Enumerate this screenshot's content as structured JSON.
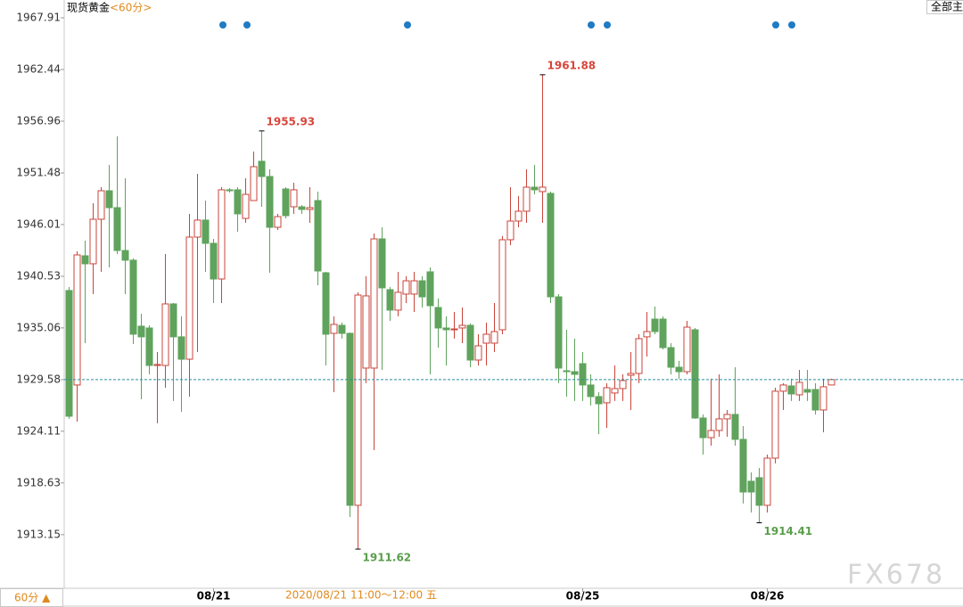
{
  "chart_data": {
    "type": "candlestick",
    "title": "现货黄金",
    "period": "<60分>",
    "period_button": "60分 ▲",
    "menu_button": "全部主",
    "crosshair_label": "2020/08/21 11:00～12:00 五",
    "watermark": "FX678",
    "up_color": "#c9453b",
    "down_color": "#5fa35c",
    "last_price_color": "#2a8f9e",
    "ylim": [
      1907.47,
      1969.8
    ],
    "yticks": [
      1967.91,
      1962.44,
      1956.96,
      1951.48,
      1946.01,
      1940.53,
      1935.06,
      1929.58,
      1924.11,
      1918.63,
      1913.15
    ],
    "categories": [
      null,
      null,
      null,
      null,
      null,
      null,
      null,
      null,
      null,
      null,
      null,
      null,
      null,
      null,
      null,
      null,
      null,
      null,
      "08/21",
      null,
      null,
      null,
      null,
      null,
      null,
      null,
      null,
      null,
      null,
      null,
      null,
      null,
      null,
      null,
      null,
      null,
      null,
      null,
      null,
      null,
      null,
      null,
      null,
      null,
      null,
      null,
      null,
      null,
      null,
      null,
      null,
      null,
      null,
      null,
      null,
      null,
      null,
      null,
      null,
      null,
      null,
      null,
      null,
      null,
      "08/25",
      null,
      null,
      null,
      null,
      null,
      null,
      null,
      null,
      null,
      null,
      null,
      null,
      null,
      null,
      null,
      null,
      null,
      null,
      null,
      null,
      null,
      null,
      "08/26",
      null,
      null,
      null,
      null,
      null,
      null,
      null,
      null
    ],
    "open": [
      1939.02,
      1929.01,
      1942.7,
      1941.85,
      1946.57,
      1949.59,
      1947.8,
      1943.26,
      1942.23,
      1935.24,
      1935.05,
      1931.08,
      1931.08,
      1937.6,
      1934.11,
      1931.74,
      1944.68,
      1946.48,
      1944.02,
      1940.24,
      1949.69,
      1949.69,
      1946.66,
      1948.55,
      1952.71,
      1951.1,
      1945.72,
      1949.78,
      1947.89,
      1947.89,
      1947.61,
      1948.55,
      1940.9,
      1934.48,
      1935.33,
      1934.48,
      1916.26,
      1930.8,
      1930.8,
      1944.49,
      1939.11,
      1936.94,
      1938.64,
      1938.64,
      1940.05,
      1941.0,
      1937.22,
      1935.05,
      1934.86,
      1935.05,
      1935.33,
      1931.65,
      1933.44,
      1933.44,
      1934.86,
      1944.4,
      1946.38,
      1947.42,
      1949.97,
      1949.5,
      1949.31,
      1938.35,
      1930.52,
      1930.42,
      1931.27,
      1929.01,
      1927.78,
      1927.12,
      1928.16,
      1928.63,
      1930.04,
      1930.23,
      1934.11,
      1935.99,
      1935.99,
      1932.97,
      1930.89,
      1930.42,
      1934.86,
      1925.51,
      1923.43,
      1924.19,
      1925.42,
      1925.89,
      1923.25,
      1918.81,
      1919.19,
      1916.26,
      1921.26,
      1928.35,
      1928.91,
      1927.97,
      1928.53,
      1928.53,
      1926.36,
      1929.01
    ],
    "high": [
      1939.39,
      1943.17,
      1944.3,
      1948.27,
      1949.97,
      1952.33,
      1955.35,
      1950.91,
      1942.42,
      1936.56,
      1935.33,
      1932.5,
      1942.89,
      1937.69,
      1936.28,
      1947.14,
      1951.39,
      1948.55,
      1944.49,
      1949.97,
      1949.88,
      1949.97,
      1950.91,
      1953.75,
      1955.93,
      1951.86,
      1947.14,
      1949.97,
      1950.44,
      1948.08,
      1949.97,
      1949.5,
      1941.0,
      1936.28,
      1935.62,
      1934.58,
      1938.83,
      1940.53,
      1945.06,
      1945.72,
      1939.39,
      1941.0,
      1940.53,
      1941.0,
      1940.53,
      1941.47,
      1938.17,
      1936.28,
      1936.75,
      1937.22,
      1935.52,
      1934.39,
      1935.62,
      1937.69,
      1944.78,
      1949.97,
      1949.03,
      1951.86,
      1952.33,
      1961.88,
      1949.5,
      1938.64,
      1934.86,
      1933.92,
      1932.5,
      1930.14,
      1928.25,
      1929.2,
      1931.08,
      1930.14,
      1932.5,
      1934.39,
      1936.75,
      1937.32,
      1936.28,
      1933.44,
      1931.56,
      1935.8,
      1935.05,
      1925.89,
      1929.67,
      1930.14,
      1926.36,
      1930.89,
      1924.66,
      1919.75,
      1920.22,
      1921.64,
      1928.72,
      1929.2,
      1929.67,
      1930.61,
      1930.61,
      1929.2,
      1929.67,
      1929.67
    ],
    "low": [
      1925.42,
      1925.13,
      1933.44,
      1938.64,
      1941.0,
      1941.47,
      1942.89,
      1938.64,
      1933.35,
      1927.5,
      1930.14,
      1924.95,
      1928.72,
      1927.31,
      1926.17,
      1927.78,
      1932.5,
      1941.0,
      1937.69,
      1937.69,
      1949.4,
      1945.25,
      1946.19,
      1948.55,
      1947.89,
      1940.9,
      1945.44,
      1946.66,
      1947.14,
      1947.14,
      1946.19,
      1939.58,
      1931.08,
      1928.25,
      1933.92,
      1915.03,
      1911.62,
      1929.2,
      1922.11,
      1930.61,
      1935.8,
      1936.28,
      1937.69,
      1936.75,
      1937.22,
      1930.14,
      1932.97,
      1931.08,
      1933.92,
      1933.44,
      1930.89,
      1931.08,
      1931.08,
      1932.5,
      1934.39,
      1943.83,
      1945.72,
      1946.19,
      1949.21,
      1946.19,
      1937.69,
      1929.2,
      1927.78,
      1927.31,
      1927.31,
      1926.83,
      1923.81,
      1924.47,
      1927.31,
      1927.31,
      1926.36,
      1929.2,
      1932.03,
      1934.39,
      1932.78,
      1930.14,
      1929.67,
      1930.14,
      1925.42,
      1921.64,
      1922.58,
      1923.53,
      1923.53,
      1922.58,
      1916.45,
      1915.5,
      1914.41,
      1915.5,
      1920.7,
      1926.36,
      1927.31,
      1927.31,
      1927.31,
      1925.89,
      1924.0,
      1929.01
    ],
    "close": [
      1925.7,
      1942.79,
      1941.85,
      1946.57,
      1949.59,
      1947.8,
      1943.26,
      1942.23,
      1934.39,
      1934.11,
      1931.08,
      1931.18,
      1937.6,
      1934.11,
      1931.74,
      1944.68,
      1946.48,
      1944.02,
      1940.24,
      1949.69,
      1949.59,
      1947.14,
      1949.21,
      1952.14,
      1951.1,
      1945.72,
      1946.85,
      1946.95,
      1949.69,
      1947.61,
      1947.8,
      1941.09,
      1934.39,
      1935.43,
      1934.48,
      1916.26,
      1938.54,
      1938.45,
      1944.49,
      1939.3,
      1936.94,
      1938.83,
      1940.05,
      1940.05,
      1938.35,
      1937.41,
      1935.05,
      1934.86,
      1934.95,
      1935.33,
      1931.65,
      1933.16,
      1934.39,
      1934.67,
      1944.4,
      1946.38,
      1947.42,
      1949.97,
      1949.69,
      1949.97,
      1938.35,
      1930.8,
      1930.42,
      1930.14,
      1929.01,
      1927.78,
      1927.02,
      1928.72,
      1928.63,
      1929.48,
      1930.23,
      1933.92,
      1934.67,
      1934.67,
      1932.97,
      1930.89,
      1930.42,
      1935.14,
      1925.51,
      1923.43,
      1924.19,
      1925.42,
      1925.89,
      1923.25,
      1917.67,
      1917.67,
      1916.26,
      1921.26,
      1928.35,
      1929.01,
      1928.06,
      1929.29,
      1928.25,
      1926.36,
      1928.82,
      1929.58
    ]
  }
}
